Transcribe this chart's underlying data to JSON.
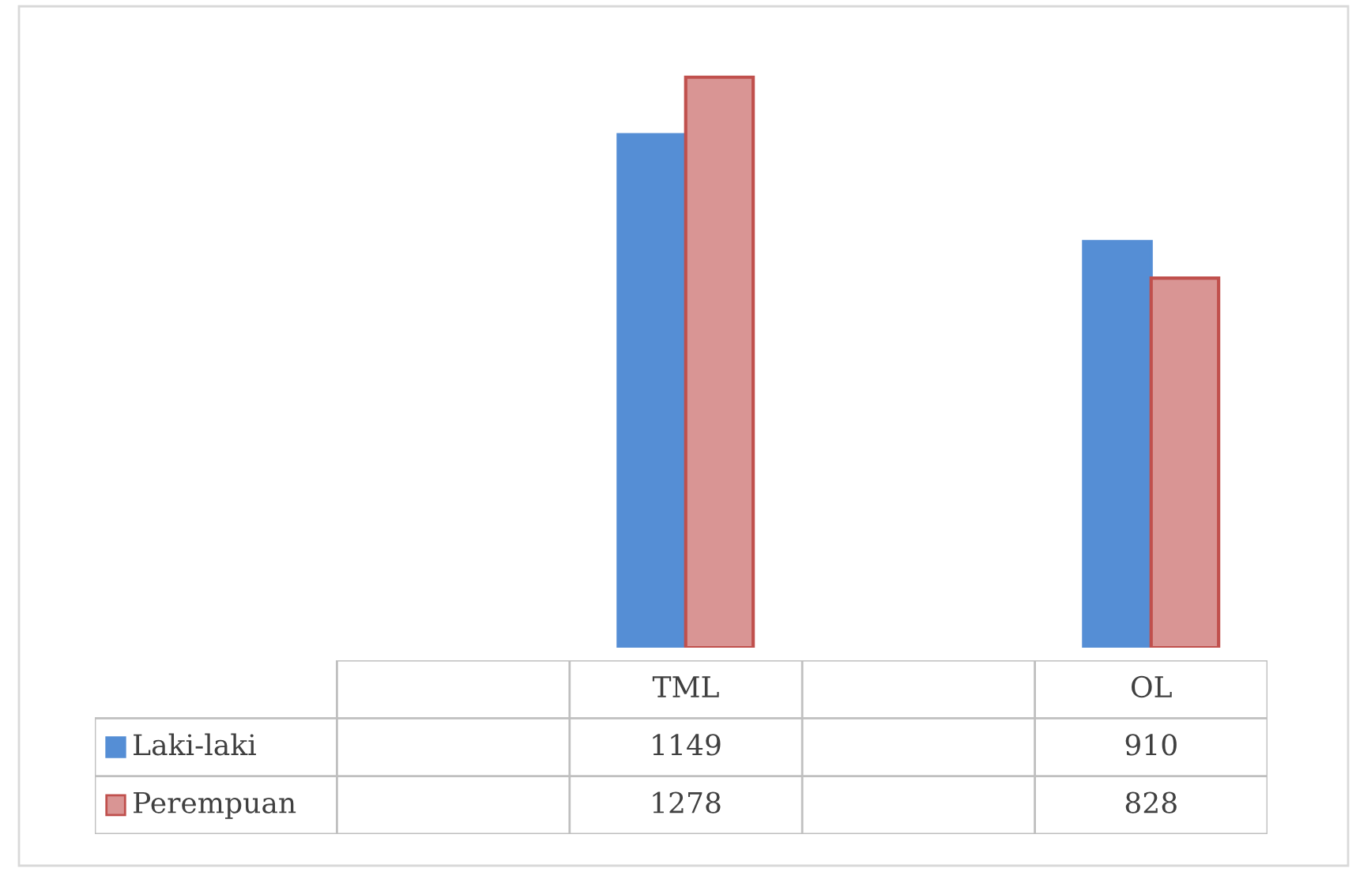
{
  "chart_data": {
    "type": "bar",
    "categories": [
      null,
      "TML",
      null,
      "OL"
    ],
    "series": [
      {
        "name": "Laki-laki",
        "color": "#558ed5",
        "values": [
          null,
          1149,
          null,
          910
        ]
      },
      {
        "name": "Perempuan",
        "color": "#d99594",
        "values": [
          null,
          1278,
          null,
          828
        ]
      }
    ],
    "data_labels": true,
    "legend": "bottom"
  }
}
